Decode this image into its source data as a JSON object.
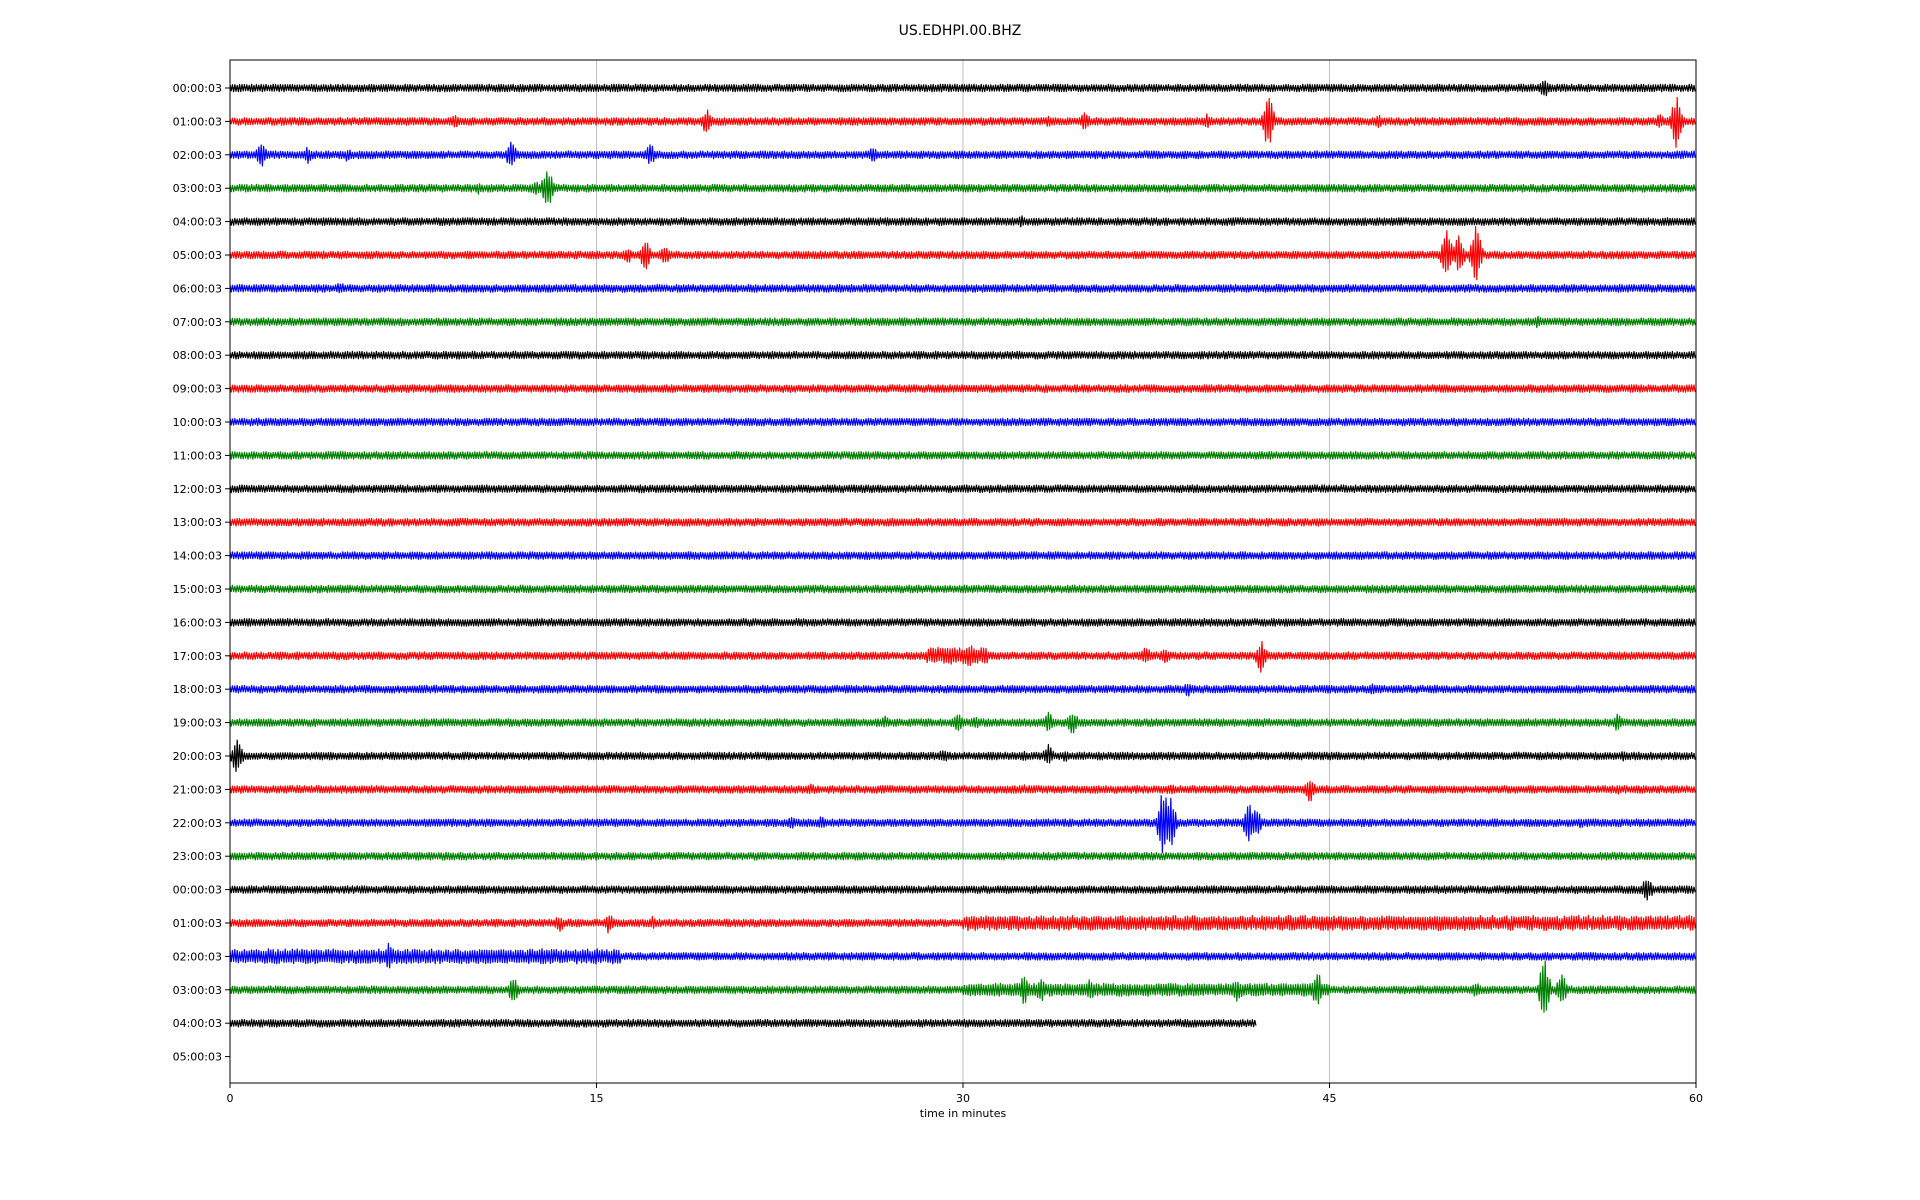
{
  "chart_data": {
    "type": "line",
    "title": "US.EDHPI.00.BHZ",
    "xlabel": "time in minutes",
    "ylabel": "",
    "xlim": [
      0,
      60
    ],
    "x_ticks": [
      "0",
      "15",
      "30",
      "45",
      "60"
    ],
    "x_tick_values": [
      0,
      15,
      30,
      45,
      60
    ],
    "grid": "vertical",
    "legend": "none",
    "line_colors": [
      "#000000",
      "#ff0000",
      "#0000ff",
      "#008000"
    ],
    "rows": [
      {
        "label": "00:00:03",
        "color": "#000000",
        "end_minute": 60,
        "events": [
          {
            "t": 53.8,
            "amp": 10
          },
          {
            "t": 57.5,
            "amp": 5
          }
        ]
      },
      {
        "label": "01:00:03",
        "color": "#ff0000",
        "end_minute": 60,
        "events": [
          {
            "t": 9.2,
            "amp": 7
          },
          {
            "t": 19.5,
            "amp": 14
          },
          {
            "t": 33.5,
            "amp": 6
          },
          {
            "t": 35,
            "amp": 12
          },
          {
            "t": 40,
            "amp": 8
          },
          {
            "t": 42.5,
            "amp": 30
          },
          {
            "t": 47,
            "amp": 7
          },
          {
            "t": 58.5,
            "amp": 8
          },
          {
            "t": 59.2,
            "amp": 28
          }
        ]
      },
      {
        "label": "02:00:03",
        "color": "#0000ff",
        "end_minute": 60,
        "events": [
          {
            "t": 1.3,
            "amp": 14
          },
          {
            "t": 3.2,
            "amp": 9
          },
          {
            "t": 4.8,
            "amp": 7
          },
          {
            "t": 11.5,
            "amp": 14
          },
          {
            "t": 17.2,
            "amp": 12
          },
          {
            "t": 26.3,
            "amp": 9
          }
        ]
      },
      {
        "label": "03:00:03",
        "color": "#008000",
        "end_minute": 60,
        "events": [
          {
            "t": 10.2,
            "amp": 7
          },
          {
            "t": 12.5,
            "amp": 8
          },
          {
            "t": 13,
            "amp": 24
          }
        ]
      },
      {
        "label": "04:00:03",
        "color": "#000000",
        "end_minute": 60,
        "events": [
          {
            "t": 32.4,
            "amp": 6
          }
        ]
      },
      {
        "label": "05:00:03",
        "color": "#ff0000",
        "end_minute": 60,
        "events": [
          {
            "t": 16.3,
            "amp": 9
          },
          {
            "t": 17,
            "amp": 16
          },
          {
            "t": 17.8,
            "amp": 12
          },
          {
            "t": 49.8,
            "amp": 28
          },
          {
            "t": 50.3,
            "amp": 22
          },
          {
            "t": 51,
            "amp": 34
          }
        ]
      },
      {
        "label": "06:00:03",
        "color": "#0000ff",
        "end_minute": 60,
        "events": [
          {
            "t": 4.5,
            "amp": 7
          }
        ]
      },
      {
        "label": "07:00:03",
        "color": "#008000",
        "end_minute": 60,
        "events": [
          {
            "t": 53.5,
            "amp": 7
          }
        ]
      },
      {
        "label": "08:00:03",
        "color": "#000000",
        "end_minute": 60,
        "events": []
      },
      {
        "label": "09:00:03",
        "color": "#ff0000",
        "end_minute": 60,
        "events": []
      },
      {
        "label": "10:00:03",
        "color": "#0000ff",
        "end_minute": 60,
        "events": []
      },
      {
        "label": "11:00:03",
        "color": "#008000",
        "end_minute": 60,
        "events": []
      },
      {
        "label": "12:00:03",
        "color": "#000000",
        "end_minute": 60,
        "events": []
      },
      {
        "label": "13:00:03",
        "color": "#ff0000",
        "end_minute": 60,
        "events": []
      },
      {
        "label": "14:00:03",
        "color": "#0000ff",
        "end_minute": 60,
        "events": []
      },
      {
        "label": "15:00:03",
        "color": "#008000",
        "end_minute": 60,
        "events": []
      },
      {
        "label": "16:00:03",
        "color": "#000000",
        "end_minute": 60,
        "events": []
      },
      {
        "label": "17:00:03",
        "color": "#ff0000",
        "end_minute": 60,
        "events": [
          {
            "t": 29.5,
            "amp": 12
          },
          {
            "t": 30.3,
            "amp": 14
          },
          {
            "t": 37.5,
            "amp": 10
          },
          {
            "t": 38.3,
            "amp": 9
          },
          {
            "t": 42.2,
            "amp": 18
          }
        ]
      },
      {
        "label": "18:00:03",
        "color": "#0000ff",
        "end_minute": 60,
        "events": [
          {
            "t": 39.2,
            "amp": 8
          },
          {
            "t": 46.8,
            "amp": 8
          }
        ]
      },
      {
        "label": "19:00:03",
        "color": "#008000",
        "end_minute": 60,
        "events": [
          {
            "t": 26.8,
            "amp": 7
          },
          {
            "t": 29.8,
            "amp": 9
          },
          {
            "t": 30.5,
            "amp": 7
          },
          {
            "t": 33.5,
            "amp": 12
          },
          {
            "t": 34.5,
            "amp": 14
          },
          {
            "t": 56.8,
            "amp": 10
          }
        ]
      },
      {
        "label": "20:00:03",
        "color": "#000000",
        "end_minute": 60,
        "events": [
          {
            "t": 0.3,
            "amp": 20
          },
          {
            "t": 29.2,
            "amp": 8
          },
          {
            "t": 32.5,
            "amp": 6
          },
          {
            "t": 33.5,
            "amp": 12
          },
          {
            "t": 34.2,
            "amp": 7
          },
          {
            "t": 57,
            "amp": 6
          }
        ]
      },
      {
        "label": "21:00:03",
        "color": "#ff0000",
        "end_minute": 60,
        "events": [
          {
            "t": 23.8,
            "amp": 6
          },
          {
            "t": 32.5,
            "amp": 5
          },
          {
            "t": 38.5,
            "amp": 7
          },
          {
            "t": 44.2,
            "amp": 14
          },
          {
            "t": 56.8,
            "amp": 6
          }
        ]
      },
      {
        "label": "22:00:03",
        "color": "#0000ff",
        "end_minute": 60,
        "events": [
          {
            "t": 23,
            "amp": 8
          },
          {
            "t": 24.2,
            "amp": 7
          },
          {
            "t": 38.2,
            "amp": 40
          },
          {
            "t": 38.5,
            "amp": 28
          },
          {
            "t": 41.7,
            "amp": 22
          },
          {
            "t": 42,
            "amp": 16
          },
          {
            "t": 55.3,
            "amp": 6
          }
        ]
      },
      {
        "label": "23:00:03",
        "color": "#008000",
        "end_minute": 60,
        "events": []
      },
      {
        "label": "00:00:03",
        "color": "#000000",
        "end_minute": 60,
        "events": [
          {
            "t": 58,
            "amp": 14
          }
        ]
      },
      {
        "label": "01:00:03",
        "color": "#ff0000",
        "end_minute": 60,
        "events": [
          {
            "t": 13.5,
            "amp": 9
          },
          {
            "t": 15.5,
            "amp": 11
          },
          {
            "t": 17.3,
            "amp": 7
          },
          {
            "t": 31.5,
            "amp": 7
          }
        ]
      },
      {
        "label": "02:00:03",
        "color": "#0000ff",
        "end_minute": 60,
        "events": [
          {
            "t": 3.5,
            "amp": 6
          },
          {
            "t": 6.5,
            "amp": 14
          },
          {
            "t": 9,
            "amp": 8
          },
          {
            "t": 14.5,
            "amp": 6
          }
        ]
      },
      {
        "label": "03:00:03",
        "color": "#008000",
        "end_minute": 60,
        "events": [
          {
            "t": 11.6,
            "amp": 14
          },
          {
            "t": 32.5,
            "amp": 16
          },
          {
            "t": 33.2,
            "amp": 14
          },
          {
            "t": 35.2,
            "amp": 12
          },
          {
            "t": 41.2,
            "amp": 14
          },
          {
            "t": 44.5,
            "amp": 20
          },
          {
            "t": 51,
            "amp": 8
          },
          {
            "t": 53.8,
            "amp": 34
          },
          {
            "t": 54.5,
            "amp": 18
          }
        ]
      },
      {
        "label": "04:00:03",
        "color": "#000000",
        "end_minute": 42,
        "events": []
      },
      {
        "label": "05:00:03",
        "color": "#000000",
        "end_minute": 0,
        "events": []
      }
    ],
    "busy_segments": [
      {
        "row": 17,
        "from": 28.5,
        "to": 31,
        "amp": 5
      },
      {
        "row": 25,
        "from": 30,
        "to": 60,
        "amp": 4
      },
      {
        "row": 26,
        "from": 0,
        "to": 16,
        "amp": 4
      },
      {
        "row": 27,
        "from": 30,
        "to": 45,
        "amp": 3
      }
    ]
  }
}
